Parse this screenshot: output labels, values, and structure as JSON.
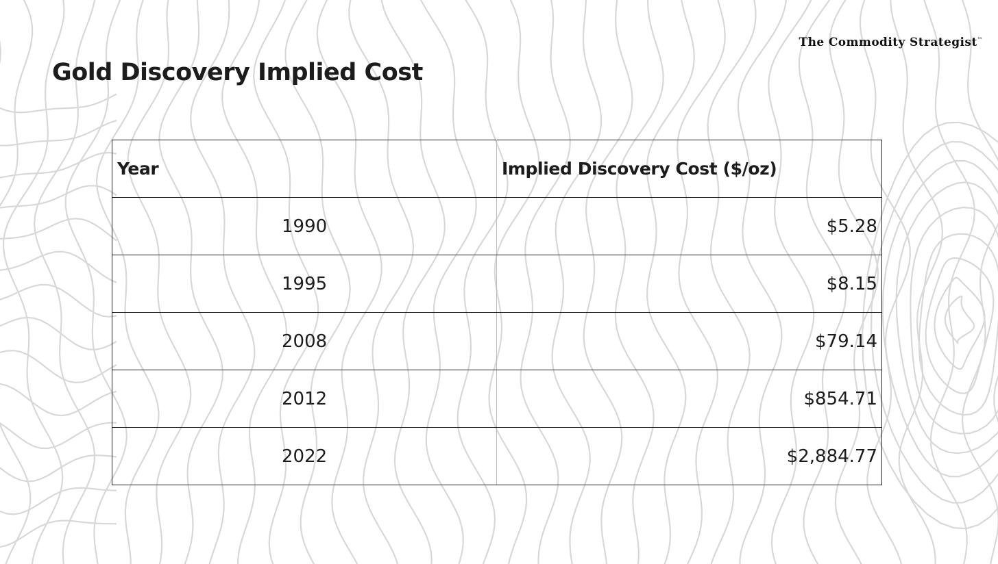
{
  "brand": {
    "name": "The Commodity Strategist",
    "trademark": "™"
  },
  "title": "Gold Discovery Implied Cost",
  "chart_data": {
    "type": "table",
    "title": "Gold Discovery Implied Cost",
    "columns": [
      "Year",
      "Implied Discovery Cost ($/oz)"
    ],
    "rows": [
      {
        "year": "1990",
        "cost": "$5.28"
      },
      {
        "year": "1995",
        "cost": "$8.15"
      },
      {
        "year": "2008",
        "cost": "$79.14"
      },
      {
        "year": "2012",
        "cost": "$854.71"
      },
      {
        "year": "2022",
        "cost": "$2,884.77"
      }
    ],
    "values": [
      5.28,
      8.15,
      79.14,
      854.71,
      2884.77
    ]
  },
  "colors": {
    "background": "#ffffff",
    "pattern_line": "#d8d8d8",
    "text": "#1c1c1c",
    "border": "#222222"
  }
}
